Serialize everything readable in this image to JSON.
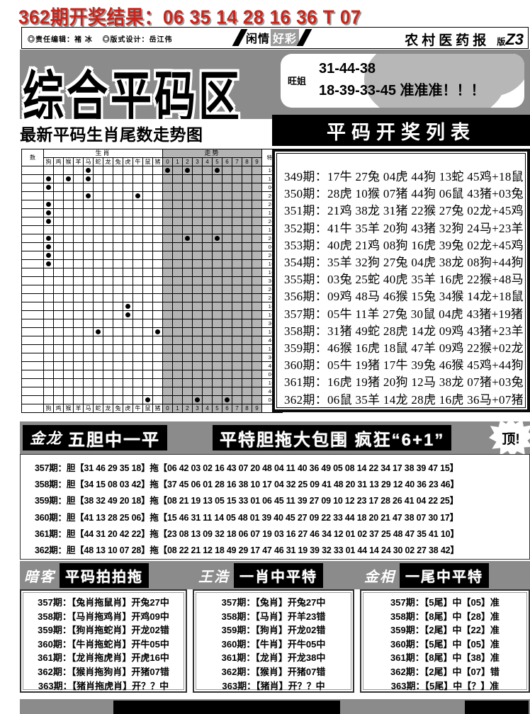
{
  "page": {
    "result_headline": "362期开奖结果：06 35 14 28 16 36 T 07"
  },
  "masthead": {
    "editor": "◎责任编辑：褚 冰",
    "designer": "◎版式设计：岳江伟",
    "center_left": "闲情",
    "center_right": "好彩",
    "paper_name": "农村医药报",
    "edition_prefix": "版",
    "edition_code": "Z3"
  },
  "banner": {
    "title": "综合平码区",
    "tipster": "旺姐",
    "tip_line1": "31-44-38",
    "tip_line2": "18-39-33-45 准准准！！！",
    "chart_title": "最新平码生肖尾数走势图",
    "list_title": "平码开奖列表"
  },
  "chart_data": {
    "type": "table",
    "title": "最新平码生肖尾数走势图",
    "corner_label": "数",
    "group_headers": [
      "生肖",
      "走势"
    ],
    "special_header": "特码",
    "zodiac_cols": [
      "狗",
      "鸡",
      "猴",
      "羊",
      "马",
      "蛇",
      "龙",
      "兔",
      "虎",
      "牛",
      "鼠",
      "猪"
    ],
    "digit_cols": [
      "0",
      "1",
      "2",
      "3",
      "4",
      "5",
      "6",
      "7",
      "8",
      "9"
    ],
    "rows": [
      {
        "special": "1-4",
        "zodiac_dots": [
          4
        ],
        "digit_dots": [
          0,
          2,
          5
        ]
      },
      {
        "special": "1-6",
        "zodiac_dots": [
          0,
          2,
          4
        ],
        "digit_dots": []
      },
      {
        "special": "0-1",
        "zodiac_dots": [
          0
        ],
        "digit_dots": []
      },
      {
        "special": "2-9",
        "zodiac_dots": [
          4,
          9
        ],
        "digit_dots": []
      },
      {
        "special": "2-2",
        "zodiac_dots": [
          0
        ],
        "digit_dots": []
      },
      {
        "special": "1-1",
        "zodiac_dots": [
          0
        ],
        "digit_dots": []
      },
      {
        "special": "2-6",
        "zodiac_dots": [
          0
        ],
        "digit_dots": []
      },
      {
        "special": "1-9",
        "zodiac_dots": [],
        "digit_dots": []
      },
      {
        "special": "2-5",
        "zodiac_dots": [
          0
        ],
        "digit_dots": [
          2,
          5
        ]
      },
      {
        "special": "0-4",
        "zodiac_dots": [
          0
        ],
        "digit_dots": []
      },
      {
        "special": "2-7",
        "zodiac_dots": [
          0
        ],
        "digit_dots": []
      },
      {
        "special": "1-4",
        "zodiac_dots": [
          0
        ],
        "digit_dots": []
      },
      {
        "special": "1-2",
        "zodiac_dots": [],
        "digit_dots": []
      },
      {
        "special": "3-1",
        "zodiac_dots": [],
        "digit_dots": []
      },
      {
        "special": "2-2",
        "zodiac_dots": [],
        "digit_dots": []
      },
      {
        "special": "2-3",
        "zodiac_dots": [],
        "digit_dots": []
      },
      {
        "special": "1-9",
        "zodiac_dots": [
          8
        ],
        "digit_dots": []
      },
      {
        "special": "1-5",
        "zodiac_dots": [
          8
        ],
        "digit_dots": []
      },
      {
        "special": "3-4",
        "zodiac_dots": [],
        "digit_dots": []
      },
      {
        "special": "1-0",
        "zodiac_dots": [
          5,
          11
        ],
        "digit_dots": []
      },
      {
        "special": "4-0",
        "zodiac_dots": [],
        "digit_dots": []
      },
      {
        "special": "1-1",
        "zodiac_dots": [],
        "digit_dots": []
      },
      {
        "special": "3-5",
        "zodiac_dots": [],
        "digit_dots": []
      },
      {
        "special": "4-9",
        "zodiac_dots": [],
        "digit_dots": []
      },
      {
        "special": "0-3",
        "zodiac_dots": [],
        "digit_dots": []
      },
      {
        "special": "1-4",
        "zodiac_dots": [],
        "digit_dots": []
      },
      {
        "special": "4-7",
        "zodiac_dots": [],
        "digit_dots": []
      },
      {
        "special": "0-8",
        "zodiac_dots": [
          10
        ],
        "digit_dots": [
          3,
          6
        ]
      }
    ]
  },
  "result_list": {
    "rows": [
      "349期：17牛 27兔 04虎 44狗 13蛇 45鸡+18鼠",
      "350期：28虎 10猴 07猪 44狗 06鼠 43猪+03兔",
      "351期：21鸡 38龙 31猪 22猴 27兔 02龙+45鸡",
      "352期：41牛 35羊 20狗 43猪 32狗 24马+23羊",
      "353期：40虎 21鸡 08狗 16虎 39兔 02龙+45鸡",
      "354期：35羊 32狗 27兔 04虎 38龙 08狗+44狗",
      "355期：03兔 25蛇 40虎 35羊 16虎 22猴+48马",
      "356期：09鸡 48马 46猴 15兔 34猴 14龙+18鼠",
      "357期：05牛 11羊 27兔 30鼠 04虎 43猪+19猪",
      "358期：31猪 49蛇 28虎 14龙 09鸡 43猪+23羊",
      "359期：46猴 16虎 18鼠 47羊 09鸡 22猴+02龙",
      "360期：05牛 19猪 17牛 39兔 46猴 45鸡+44狗",
      "361期：16虎 19猪 20狗 12马 38龙 07猪+03兔",
      "362期：06鼠 35羊 14龙 28虎 16虎 36马+07猪"
    ]
  },
  "dantuo": {
    "name": "金龙",
    "slogan_left": "五胆中一平",
    "slogan_right": "平特胆拖大包围 疯狂“6+1”",
    "burst": "顶!",
    "dan_label": "胆",
    "tuo_label": "拖",
    "rows": [
      {
        "issue": "357期：",
        "dan": "31 46 29 35 18",
        "tuo": "06 42 03 02 16 43 07 20 48 04 11 40 36 49 05 08 14 22 34 17 38 39 47 15"
      },
      {
        "issue": "358期：",
        "dan": "34 15 08 03 42",
        "tuo": "37 45 06 01 28 16 38 10 17 04 32 25 09 41 48 20 31 13 29 12 40 36 23 46"
      },
      {
        "issue": "359期：",
        "dan": "38 32 49 20 18",
        "tuo": "08 21 19 13 05 15 33 01 06 45 11 39 27 09 10 12 23 17 28 26 41 04 22 25"
      },
      {
        "issue": "360期：",
        "dan": "41 13 28 25 06",
        "tuo": "15 46 31 11 14 05 48 01 39 40 45 27 09 22 33 44 18 20 21 47 38 07 30 17"
      },
      {
        "issue": "361期：",
        "dan": "44 31 20 42 22",
        "tuo": "23 08 13 09 32 18 06 07 19 03 16 27 46 34 12 01 02 37 25 48 47 35 41 10"
      },
      {
        "issue": "362期：",
        "dan": "48 13 10 07 28",
        "tuo": "08 22 21 12 18 49 29 17 47 46 31 19 39 32 33 01 44 14 24 30 02 27 38 42"
      }
    ]
  },
  "tip_columns": [
    {
      "author": "暗客",
      "title": "平码拍拍拖",
      "rows": [
        "357期：【兔肖拖鼠肖】开兔27中",
        "358期：【马肖拖鸡肖】开鸡09中",
        "359期：【狗肖拖蛇肖】开龙02错",
        "360期：【牛肖拖蛇肖】开牛05中",
        "361期：【龙肖拖虎肖】开虎16中",
        "362期：【猴肖拖狗肖】开猪07错",
        "363期：【猪肖拖虎肖】开？？中"
      ]
    },
    {
      "author": "王浩",
      "title": "一肖中平特",
      "rows": [
        "357期：【兔肖】开兔27中",
        "358期：【马肖】开羊23错",
        "359期：【狗肖】开龙02错",
        "360期：【牛肖】开牛05中",
        "361期：【龙肖】开龙38中",
        "362期：【猴肖】开猪07错",
        "363期：【猪肖】开？？中"
      ]
    },
    {
      "author": "金相",
      "title": "一尾中平特",
      "rows": [
        "357期：【5尾】中【05】准",
        "358期：【8尾】中【28】准",
        "359期：【2尾】中【22】准",
        "360期：【5尾】中【05】准",
        "361期：【8尾】中【38】准",
        "362期：【2尾】中【07】错",
        "363期：【5尾】中【？】准"
      ]
    }
  ],
  "colors": {
    "accent_red": "#c9251c",
    "band_gray": "#8b8b8b",
    "trend_cell_gray": "#b4b4b4",
    "black": "#000000"
  }
}
